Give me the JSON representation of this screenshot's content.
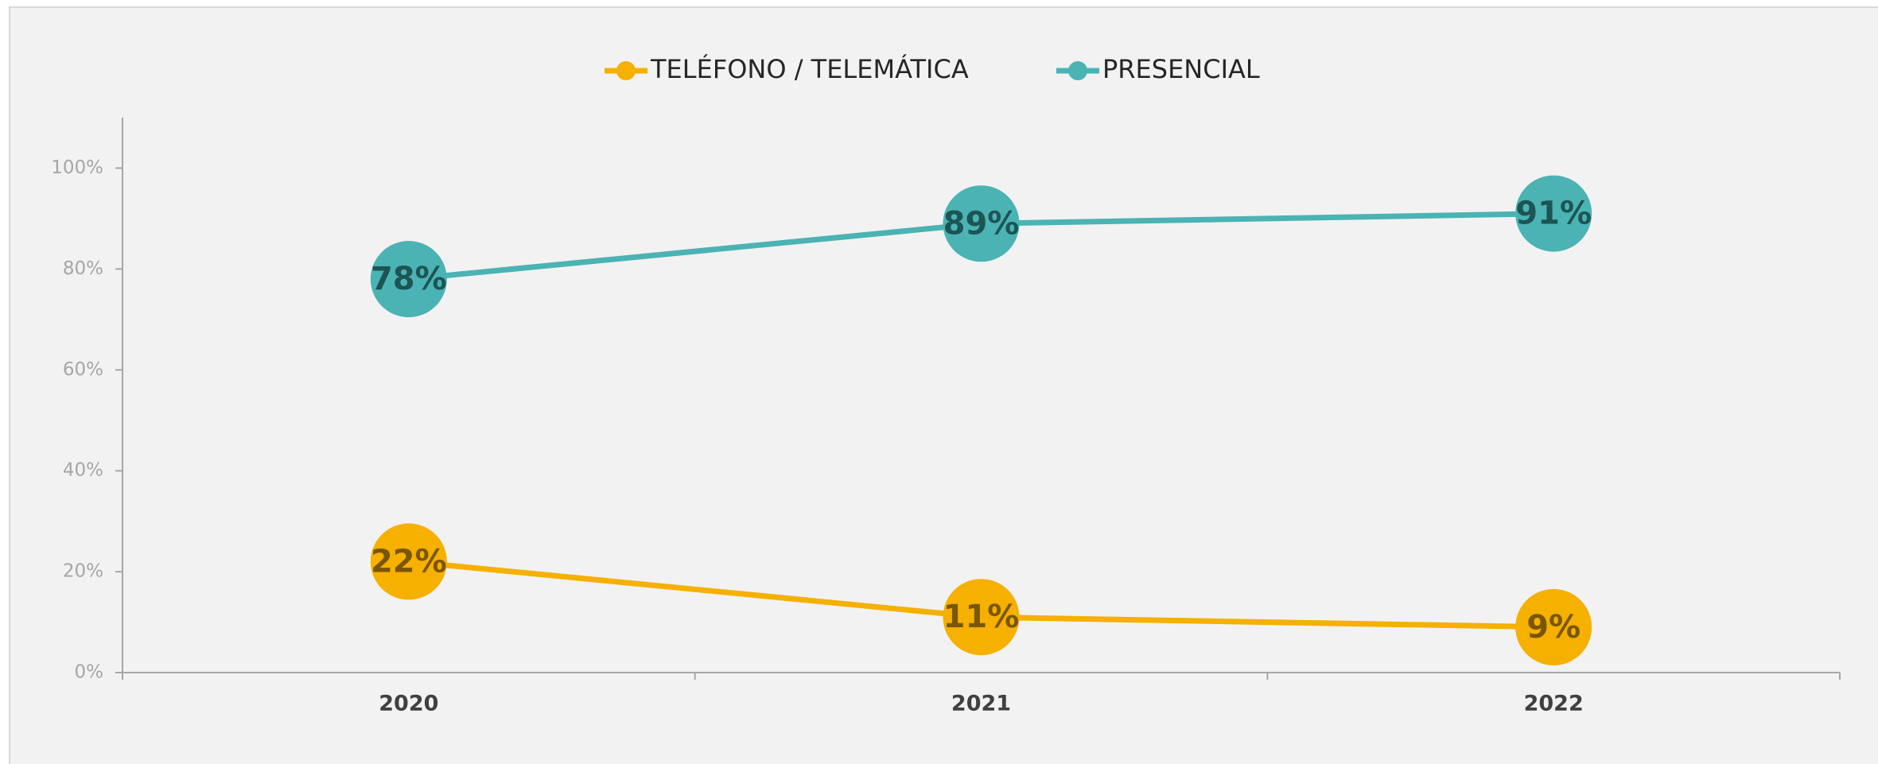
{
  "chart_data": {
    "type": "line",
    "categories": [
      "2020",
      "2021",
      "2022"
    ],
    "series": [
      {
        "name": "TELÉFONO / TELEMÁTICA",
        "color": "#f5b000",
        "label_color": "#7a5600",
        "values": [
          22,
          11,
          9
        ],
        "value_labels": [
          "22%",
          "11%",
          "9%"
        ]
      },
      {
        "name": "PRESENCIAL",
        "color": "#4bb3b3",
        "label_color": "#1d5454",
        "values": [
          78,
          89,
          91
        ],
        "value_labels": [
          "78%",
          "89%",
          "91%"
        ]
      }
    ],
    "ylim": [
      0,
      110
    ],
    "yticks": [
      {
        "value": 0,
        "label": "0%"
      },
      {
        "value": 20,
        "label": "20%"
      },
      {
        "value": 40,
        "label": "40%"
      },
      {
        "value": 60,
        "label": "60%"
      },
      {
        "value": 80,
        "label": "80%"
      },
      {
        "value": 100,
        "label": "100%"
      }
    ],
    "grid": false,
    "legend": "top"
  }
}
